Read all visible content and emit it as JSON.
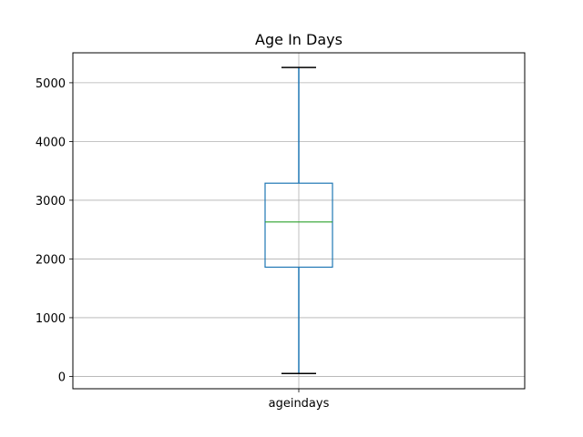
{
  "chart_data": {
    "type": "box",
    "title": "Age In Days",
    "xlabel": "",
    "ylabel": "",
    "categories": [
      "ageindays"
    ],
    "boxes": [
      {
        "name": "ageindays",
        "whisker_low": 50,
        "q1": 1860,
        "median": 2630,
        "q3": 3290,
        "whisker_high": 5260
      }
    ],
    "ylim": [
      -210,
      5510
    ],
    "yticks": [
      0,
      1000,
      2000,
      3000,
      4000,
      5000
    ],
    "ytick_labels": [
      "0",
      "1000",
      "2000",
      "3000",
      "4000",
      "5000"
    ],
    "grid": true,
    "colors": {
      "box": "#1f77b4",
      "whisker": "#1f77b4",
      "cap": "#000000",
      "median": "#2ca02c",
      "grid": "#b0b0b0",
      "axes": "#000000"
    }
  }
}
